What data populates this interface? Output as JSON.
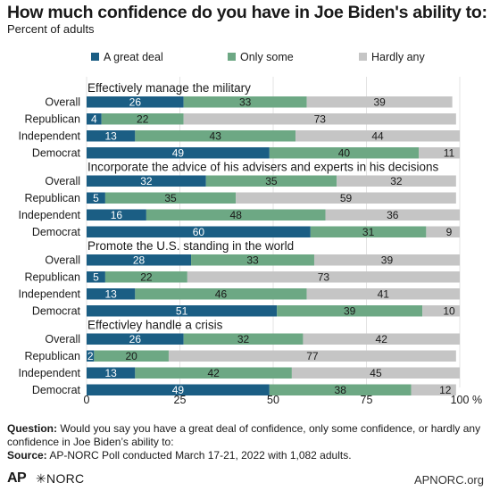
{
  "title": "How much confidence do you have in Joe Biden's ability to:",
  "subtitle": "Percent of adults",
  "footnote": {
    "question_label": "Question:",
    "question_text": " Would you say you have a great deal of confidence, only some confidence, or hardly any confidence in Joe Biden’s ability to:",
    "source_label": "Source:",
    "source_text": " AP-NORC Poll conducted March 17-21, 2022 with 1,082 adults."
  },
  "footer": {
    "ap_logo": "AP",
    "norc_logo": "✳NORC",
    "site": "APNORC.org"
  },
  "colors": {
    "great_deal": "#1b5e84",
    "only_some": "#6da884",
    "hardly_any": "#c5c5c5"
  },
  "chart_data": {
    "type": "bar",
    "orientation": "horizontal",
    "stacked": true,
    "x_axis": {
      "ticks": [
        0,
        25,
        50,
        75,
        100
      ],
      "unit_label": "%",
      "xlim": [
        0,
        100
      ]
    },
    "legend": {
      "placement": "top",
      "entries": [
        "A great deal",
        "Only some",
        "Hardly any"
      ]
    },
    "groups": [
      {
        "title": "Effectively manage the military",
        "rows": [
          {
            "label": "Overall",
            "values": [
              26,
              33,
              39
            ]
          },
          {
            "label": "Republican",
            "values": [
              4,
              22,
              73
            ]
          },
          {
            "label": "Independent",
            "values": [
              13,
              43,
              44
            ]
          },
          {
            "label": "Democrat",
            "values": [
              49,
              40,
              11
            ]
          }
        ]
      },
      {
        "title": "Incorporate the advice of his advisers and experts in his decisions",
        "rows": [
          {
            "label": "Overall",
            "values": [
              32,
              35,
              32
            ]
          },
          {
            "label": "Republican",
            "values": [
              5,
              35,
              59
            ]
          },
          {
            "label": "Independent",
            "values": [
              16,
              48,
              36
            ]
          },
          {
            "label": "Democrat",
            "values": [
              60,
              31,
              9
            ]
          }
        ]
      },
      {
        "title": "Promote the U.S. standing in the world",
        "rows": [
          {
            "label": "Overall",
            "values": [
              28,
              33,
              39
            ]
          },
          {
            "label": "Republican",
            "values": [
              5,
              22,
              73
            ]
          },
          {
            "label": "Independent",
            "values": [
              13,
              46,
              41
            ]
          },
          {
            "label": "Democrat",
            "values": [
              51,
              39,
              10
            ]
          }
        ]
      },
      {
        "title": "Effectivley handle a crisis",
        "rows": [
          {
            "label": "Overall",
            "values": [
              26,
              32,
              42
            ]
          },
          {
            "label": "Republican",
            "values": [
              2,
              20,
              77
            ]
          },
          {
            "label": "Independent",
            "values": [
              13,
              42,
              45
            ]
          },
          {
            "label": "Democrat",
            "values": [
              49,
              38,
              12
            ]
          }
        ]
      }
    ]
  }
}
